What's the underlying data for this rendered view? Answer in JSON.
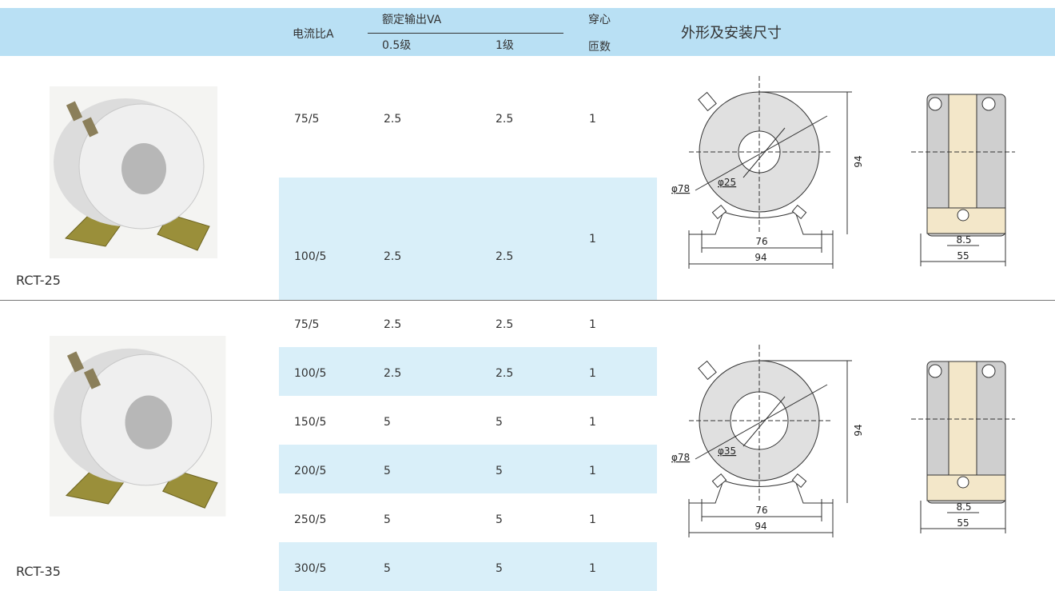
{
  "header": {
    "ratio": "电流比A",
    "rated_output": "额定输出VA",
    "class_05": "0.5级",
    "class_1": "1级",
    "turns_line1": "穿心",
    "turns_line2": "匝数",
    "dimensions": "外形及安装尺寸"
  },
  "sections": [
    {
      "model": "RCT-25",
      "rows": [
        [
          "75/5",
          "2.5",
          "2.5",
          "1"
        ],
        [
          "100/5",
          "2.5",
          "2.5",
          "1"
        ]
      ],
      "drawing": {
        "outer_diameter": "φ78",
        "inner_diameter": "φ25",
        "height": "94",
        "bolt_spacing": "76",
        "base_width": "94",
        "slot": "8.5",
        "side_width": "55"
      }
    },
    {
      "model": "RCT-35",
      "rows": [
        [
          "75/5",
          "2.5",
          "2.5",
          "1"
        ],
        [
          "100/5",
          "2.5",
          "2.5",
          "1"
        ],
        [
          "150/5",
          "5",
          "5",
          "1"
        ],
        [
          "200/5",
          "5",
          "5",
          "1"
        ],
        [
          "250/5",
          "5",
          "5",
          "1"
        ],
        [
          "300/5",
          "5",
          "5",
          "1"
        ]
      ],
      "drawing": {
        "outer_diameter": "φ78",
        "inner_diameter": "φ35",
        "height": "94",
        "bolt_spacing": "76",
        "base_width": "94",
        "slot": "8.5",
        "side_width": "55"
      }
    }
  ]
}
